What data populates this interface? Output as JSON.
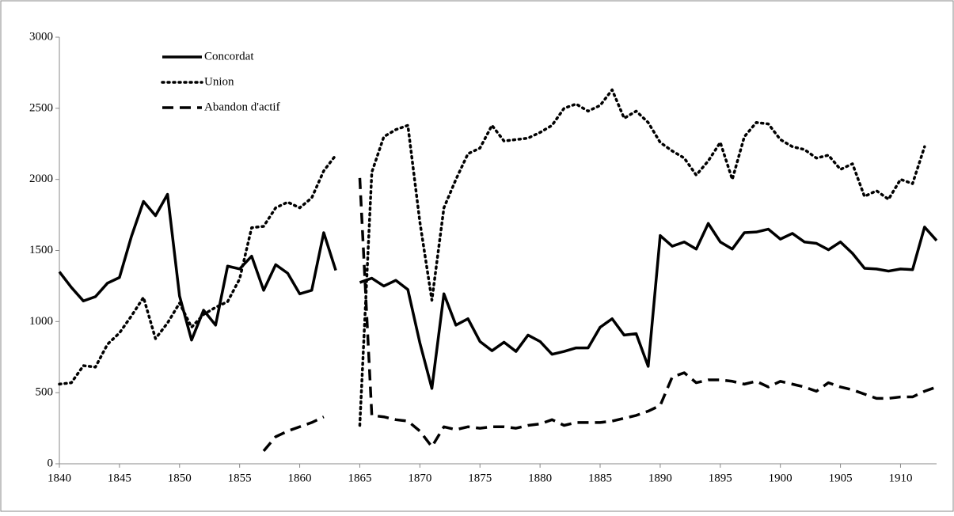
{
  "chart_data": {
    "type": "line",
    "x": [
      1840,
      1841,
      1842,
      1843,
      1844,
      1845,
      1846,
      1847,
      1848,
      1849,
      1850,
      1851,
      1852,
      1853,
      1854,
      1855,
      1856,
      1857,
      1858,
      1859,
      1860,
      1861,
      1862,
      1863,
      1864,
      1865,
      1866,
      1867,
      1868,
      1869,
      1870,
      1871,
      1872,
      1873,
      1874,
      1875,
      1876,
      1877,
      1878,
      1879,
      1880,
      1881,
      1882,
      1883,
      1884,
      1885,
      1886,
      1887,
      1888,
      1889,
      1890,
      1891,
      1892,
      1893,
      1894,
      1895,
      1896,
      1897,
      1898,
      1899,
      1900,
      1901,
      1902,
      1903,
      1904,
      1905,
      1906,
      1907,
      1908,
      1909,
      1910,
      1911,
      1912,
      1913
    ],
    "series": [
      {
        "name": "Concordat",
        "color": "#000000",
        "style": "solid",
        "values": [
          1350,
          1240,
          1145,
          1175,
          1270,
          1310,
          1600,
          1845,
          1745,
          1895,
          1180,
          870,
          1080,
          975,
          1390,
          1370,
          1460,
          1220,
          1400,
          1340,
          1195,
          1220,
          1625,
          1360,
          null,
          1275,
          1305,
          1250,
          1290,
          1225,
          850,
          530,
          1195,
          975,
          1020,
          860,
          795,
          855,
          790,
          905,
          860,
          770,
          790,
          815,
          815,
          960,
          1020,
          905,
          915,
          685,
          1605,
          1530,
          1560,
          1510,
          1690,
          1560,
          1510,
          1625,
          1630,
          1650,
          1580,
          1620,
          1560,
          1550,
          1505,
          1560,
          1480,
          1375,
          1370,
          1355,
          1370,
          1365,
          1665,
          1570
        ]
      },
      {
        "name": "Union",
        "color": "#000000",
        "style": "dotted",
        "values": [
          560,
          570,
          690,
          680,
          840,
          920,
          1040,
          1170,
          880,
          990,
          1130,
          960,
          1050,
          1100,
          1140,
          1300,
          1660,
          1670,
          1800,
          1840,
          1800,
          1870,
          2060,
          2170,
          null,
          270,
          2050,
          2300,
          2350,
          2380,
          1700,
          1150,
          1800,
          2000,
          2180,
          2220,
          2380,
          2270,
          2280,
          2290,
          2330,
          2380,
          2500,
          2530,
          2480,
          2520,
          2630,
          2430,
          2480,
          2400,
          2260,
          2200,
          2150,
          2030,
          2130,
          2260,
          2000,
          2300,
          2400,
          2390,
          2280,
          2230,
          2210,
          2150,
          2170,
          2070,
          2110,
          1880,
          1920,
          1860,
          2000,
          1970,
          2230,
          null
        ]
      },
      {
        "name": "Abandon d'actif",
        "color": "#000000",
        "style": "dashed",
        "values": [
          null,
          null,
          null,
          null,
          null,
          null,
          null,
          null,
          null,
          null,
          null,
          null,
          null,
          null,
          null,
          null,
          null,
          90,
          190,
          230,
          260,
          290,
          330,
          null,
          null,
          2010,
          340,
          330,
          310,
          300,
          230,
          120,
          260,
          240,
          260,
          250,
          260,
          260,
          250,
          270,
          280,
          310,
          270,
          290,
          290,
          290,
          300,
          320,
          340,
          370,
          410,
          610,
          640,
          570,
          590,
          590,
          580,
          560,
          580,
          540,
          580,
          560,
          540,
          510,
          570,
          540,
          520,
          490,
          460,
          460,
          470,
          470,
          510,
          540
        ]
      }
    ],
    "xlim": [
      1840,
      1913
    ],
    "xticks": [
      1840,
      1845,
      1850,
      1855,
      1860,
      1865,
      1870,
      1875,
      1880,
      1885,
      1890,
      1895,
      1900,
      1905,
      1910
    ],
    "ylim": [
      0,
      3000
    ],
    "yticks": [
      0,
      500,
      1000,
      1500,
      2000,
      2500,
      3000
    ],
    "legend": "top-left"
  }
}
